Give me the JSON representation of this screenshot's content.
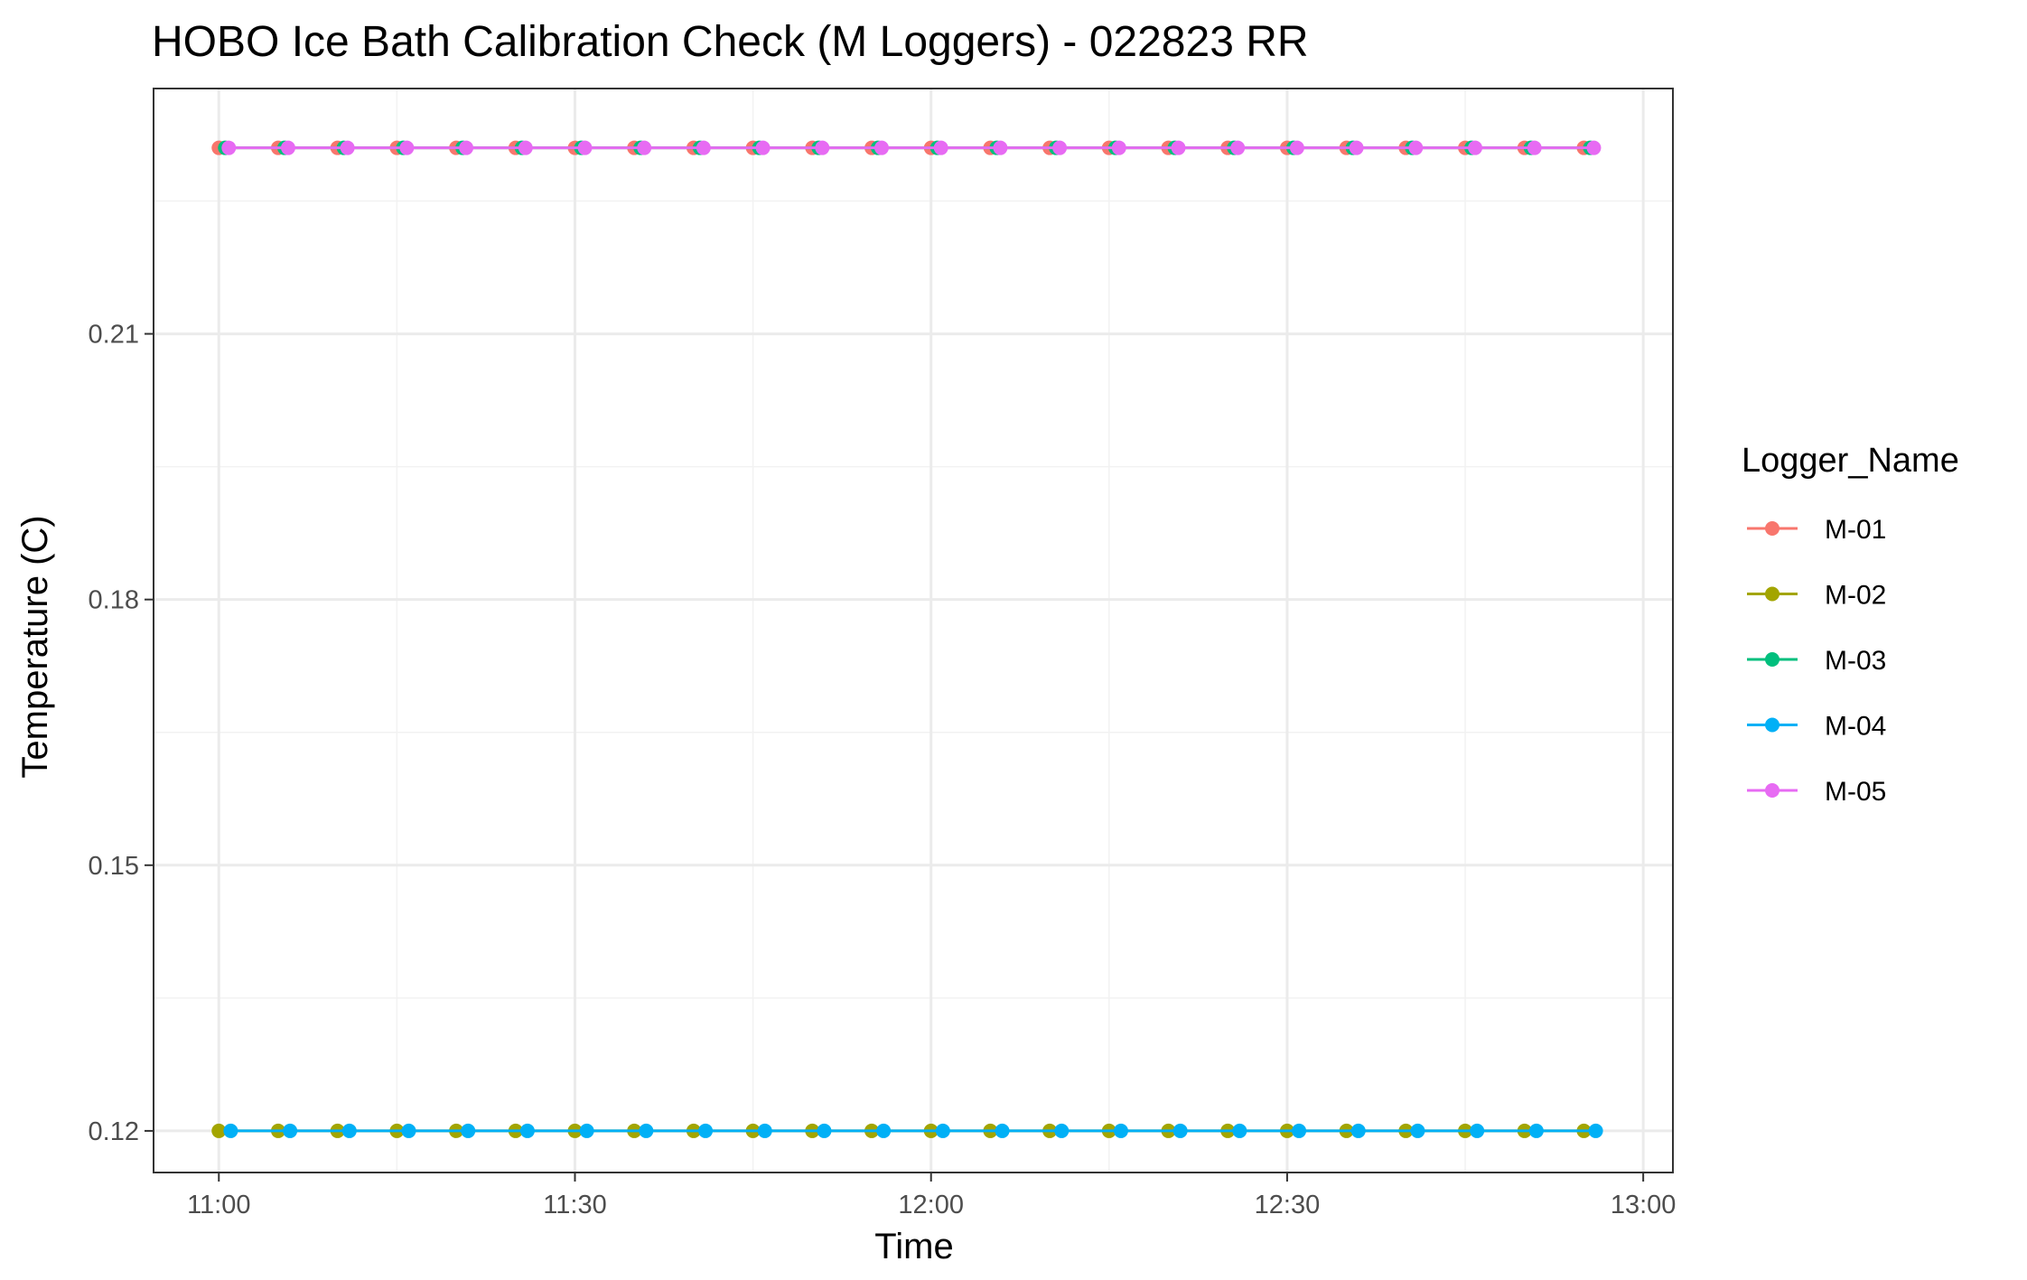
{
  "chart_data": {
    "type": "line",
    "title": "HOBO Ice Bath Calibration Check (M Loggers) - 022823 RR",
    "xlabel": "Time",
    "ylabel": "Temperature (C)",
    "x_ticks": [
      "11:00",
      "11:30",
      "12:00",
      "12:30",
      "13:00"
    ],
    "y_ticks": [
      "0.12",
      "0.15",
      "0.18",
      "0.21"
    ],
    "x_range_minutes": [
      -5.5,
      122.5
    ],
    "ylim": [
      0.1153,
      0.2377
    ],
    "grid": true,
    "legend_position": "right",
    "legend_title": "Logger_Name",
    "series": [
      {
        "name": "M-01",
        "color": "#F8766D",
        "y": 0.231,
        "times": [
          "11:00",
          "11:05",
          "11:10",
          "11:15",
          "11:20",
          "11:25",
          "11:30",
          "11:35",
          "11:40",
          "11:45",
          "11:50",
          "11:55",
          "12:00",
          "12:05",
          "12:10",
          "12:15",
          "12:20",
          "12:25",
          "12:30",
          "12:35",
          "12:40",
          "12:45",
          "12:50",
          "12:55"
        ]
      },
      {
        "name": "M-02",
        "color": "#A3A500",
        "y": 0.12,
        "times": [
          "11:00",
          "11:05",
          "11:10",
          "11:15",
          "11:20",
          "11:25",
          "11:30",
          "11:35",
          "11:40",
          "11:45",
          "11:50",
          "11:55",
          "12:00",
          "12:05",
          "12:10",
          "12:15",
          "12:20",
          "12:25",
          "12:30",
          "12:35",
          "12:40",
          "12:45",
          "12:50",
          "12:55"
        ]
      },
      {
        "name": "M-03",
        "color": "#00BF7D",
        "y": 0.231,
        "times": [
          "11:00",
          "11:05",
          "11:10",
          "11:15",
          "11:20",
          "11:25",
          "11:30",
          "11:35",
          "11:40",
          "11:45",
          "11:50",
          "11:55",
          "12:00",
          "12:05",
          "12:10",
          "12:15",
          "12:20",
          "12:25",
          "12:30",
          "12:35",
          "12:40",
          "12:45",
          "12:50",
          "12:55"
        ]
      },
      {
        "name": "M-04",
        "color": "#00B0F6",
        "y": 0.12,
        "times": [
          "11:01",
          "11:06",
          "11:11",
          "11:16",
          "11:21",
          "11:26",
          "11:31",
          "11:36",
          "11:41",
          "11:46",
          "11:51",
          "11:56",
          "12:01",
          "12:06",
          "12:11",
          "12:16",
          "12:21",
          "12:26",
          "12:31",
          "12:36",
          "12:41",
          "12:46",
          "12:51",
          "12:56"
        ]
      },
      {
        "name": "M-05",
        "color": "#E76BF3",
        "y": 0.231,
        "times": [
          "11:00",
          "11:05",
          "11:10",
          "11:15",
          "11:20",
          "11:25",
          "11:30",
          "11:35",
          "11:40",
          "11:45",
          "11:50",
          "11:55",
          "12:00",
          "12:05",
          "12:10",
          "12:15",
          "12:20",
          "12:25",
          "12:30",
          "12:35",
          "12:40",
          "12:45",
          "12:50",
          "12:55"
        ]
      }
    ]
  }
}
